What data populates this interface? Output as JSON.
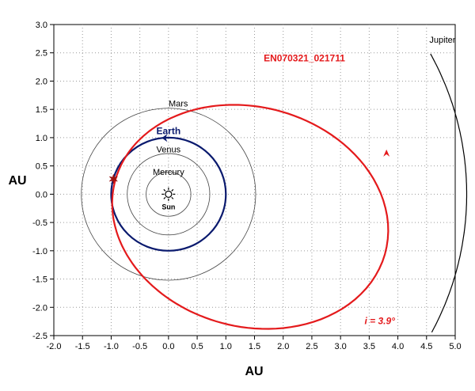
{
  "chart_data": {
    "type": "orbit-diagram",
    "title": "",
    "xlabel": "AU",
    "ylabel": "AU",
    "xlim": [
      -2.0,
      5.0
    ],
    "ylim": [
      -2.5,
      3.0
    ],
    "x_ticks": [
      "-2.0",
      "-1.5",
      "-1.0",
      "-0.5",
      "0.0",
      "0.5",
      "1.0",
      "1.5",
      "2.0",
      "2.5",
      "3.0",
      "3.5",
      "4.0",
      "4.5",
      "5.0"
    ],
    "y_ticks": [
      "3.0",
      "2.5",
      "2.0",
      "1.5",
      "1.0",
      "0.5",
      "0.0",
      "-0.5",
      "-1.0",
      "-1.5",
      "-2.0",
      "-2.5"
    ],
    "sun": {
      "label": "Sun",
      "x": 0.0,
      "y": 0.0
    },
    "orbits": [
      {
        "name": "Mercury",
        "label": "Mercury",
        "radius": 0.39,
        "color": "#444444"
      },
      {
        "name": "Venus",
        "label": "Venus",
        "radius": 0.72,
        "color": "#444444"
      },
      {
        "name": "Earth",
        "label": "Earth",
        "radius": 1.0,
        "color": "#0a1a6e"
      },
      {
        "name": "Mars",
        "label": "Mars",
        "radius": 1.52,
        "color": "#444444"
      },
      {
        "name": "Jupiter",
        "label": "Jupiter",
        "radius": 5.2,
        "color": "#000000"
      }
    ],
    "comet": {
      "name": "EN070321_021711",
      "label": "EN070321_021711",
      "color": "#e41a1c",
      "perihelion_au": 0.96,
      "aphelion_au": 3.92,
      "perihelion_point": [
        -0.96,
        0.27
      ],
      "inclination_label": "i = 3.9°"
    }
  }
}
